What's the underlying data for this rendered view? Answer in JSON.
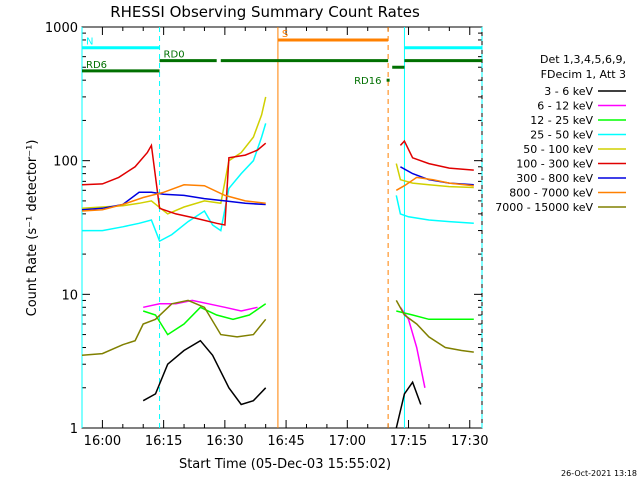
{
  "chart_data": {
    "type": "line",
    "title": "RHESSI Observing Summary Count Rates",
    "xlabel": "Start Time (05-Dec-03 15:55:02)",
    "ylabel": "Count Rate (s⁻¹ detector⁻¹)",
    "yscale": "log",
    "ylim": [
      1,
      1000
    ],
    "xlim": [
      "15:55",
      "17:33"
    ],
    "x_ticks": [
      "16:00",
      "16:15",
      "16:30",
      "16:45",
      "17:00",
      "17:15",
      "17:30"
    ],
    "y_ticks": [
      "1",
      "10",
      "100",
      "1000"
    ],
    "legend_header": [
      "Det 1,3,4,5,6,9,",
      "FDecim 1, Att 3"
    ],
    "footer": "26-Oct-2021 13:18",
    "series": [
      {
        "name": "3 - 6 keV",
        "color": "#000000",
        "points": [
          [
            "16:10",
            1.6
          ],
          [
            "16:13",
            1.8
          ],
          [
            "16:16",
            3.0
          ],
          [
            "16:20",
            3.8
          ],
          [
            "16:24",
            4.5
          ],
          [
            "16:27",
            3.5
          ],
          [
            "16:31",
            2.0
          ],
          [
            "16:34",
            1.5
          ],
          [
            "16:37",
            1.6
          ],
          [
            "16:40",
            2.0
          ],
          [
            "17:12",
            1.0
          ],
          [
            "17:14",
            1.8
          ],
          [
            "17:16",
            2.2
          ],
          [
            "17:18",
            1.5
          ]
        ]
      },
      {
        "name": "6 - 12 keV",
        "color": "#ff00ff",
        "points": [
          [
            "16:10",
            8.0
          ],
          [
            "16:14",
            8.5
          ],
          [
            "16:18",
            8.5
          ],
          [
            "16:22",
            9.0
          ],
          [
            "16:26",
            8.5
          ],
          [
            "16:30",
            8.0
          ],
          [
            "16:34",
            7.5
          ],
          [
            "16:38",
            8.0
          ],
          [
            "17:13",
            8.0
          ],
          [
            "17:15",
            6.5
          ],
          [
            "17:17",
            4.0
          ],
          [
            "17:19",
            2.0
          ]
        ]
      },
      {
        "name": "12 - 25 keV",
        "color": "#00ff00",
        "points": [
          [
            "16:10",
            7.5
          ],
          [
            "16:13",
            7.0
          ],
          [
            "16:16",
            5.0
          ],
          [
            "16:20",
            6.0
          ],
          [
            "16:24",
            8.0
          ],
          [
            "16:28",
            7.0
          ],
          [
            "16:32",
            6.5
          ],
          [
            "16:36",
            7.0
          ],
          [
            "16:40",
            8.5
          ],
          [
            "17:12",
            7.5
          ],
          [
            "17:16",
            7.0
          ],
          [
            "17:20",
            6.5
          ],
          [
            "17:25",
            6.5
          ],
          [
            "17:31",
            6.5
          ]
        ]
      },
      {
        "name": "25 - 50 keV",
        "color": "#00ffff",
        "points": [
          [
            "15:55",
            30.0
          ],
          [
            "16:00",
            30.0
          ],
          [
            "16:05",
            32.0
          ],
          [
            "16:09",
            34.0
          ],
          [
            "16:12",
            36.0
          ],
          [
            "16:14",
            25.0
          ],
          [
            "16:17",
            28.0
          ],
          [
            "16:21",
            35.0
          ],
          [
            "16:25",
            42.0
          ],
          [
            "16:27",
            33.0
          ],
          [
            "16:29",
            30.0
          ],
          [
            "16:31",
            62.0
          ],
          [
            "16:34",
            80.0
          ],
          [
            "16:37",
            100.0
          ],
          [
            "16:39",
            150.0
          ],
          [
            "16:40",
            190.0
          ],
          [
            "17:12",
            55.0
          ],
          [
            "17:13",
            40.0
          ],
          [
            "17:15",
            38.0
          ],
          [
            "17:20",
            36.0
          ],
          [
            "17:25",
            35.0
          ],
          [
            "17:31",
            34.0
          ]
        ]
      },
      {
        "name": "50 - 100 keV",
        "color": "#d0d000",
        "points": [
          [
            "15:55",
            44.0
          ],
          [
            "16:00",
            45.0
          ],
          [
            "16:05",
            46.0
          ],
          [
            "16:09",
            48.0
          ],
          [
            "16:12",
            50.0
          ],
          [
            "16:16",
            40.0
          ],
          [
            "16:20",
            45.0
          ],
          [
            "16:25",
            50.0
          ],
          [
            "16:29",
            48.0
          ],
          [
            "16:31",
            100.0
          ],
          [
            "16:34",
            115.0
          ],
          [
            "16:37",
            150.0
          ],
          [
            "16:39",
            220.0
          ],
          [
            "16:40",
            300.0
          ],
          [
            "17:12",
            95.0
          ],
          [
            "17:13",
            72.0
          ],
          [
            "17:16",
            68.0
          ],
          [
            "17:20",
            66.0
          ],
          [
            "17:25",
            64.0
          ],
          [
            "17:31",
            63.0
          ]
        ]
      },
      {
        "name": "100 - 300 keV",
        "color": "#e00000",
        "points": [
          [
            "15:55",
            66.0
          ],
          [
            "16:00",
            67.0
          ],
          [
            "16:04",
            75.0
          ],
          [
            "16:08",
            90.0
          ],
          [
            "16:11",
            115.0
          ],
          [
            "16:12",
            130.0
          ],
          [
            "16:14",
            44.0
          ],
          [
            "16:18",
            40.0
          ],
          [
            "16:23",
            37.0
          ],
          [
            "16:28",
            34.0
          ],
          [
            "16:30",
            33.0
          ],
          [
            "16:31",
            105.0
          ],
          [
            "16:35",
            110.0
          ],
          [
            "16:38",
            120.0
          ],
          [
            "16:40",
            135.0
          ],
          [
            "17:13",
            130.0
          ],
          [
            "17:14",
            140.0
          ],
          [
            "17:16",
            105.0
          ],
          [
            "17:20",
            95.0
          ],
          [
            "17:25",
            88.0
          ],
          [
            "17:31",
            85.0
          ]
        ]
      },
      {
        "name": "300 - 800 keV",
        "color": "#0000e0",
        "points": [
          [
            "15:55",
            43.0
          ],
          [
            "16:00",
            44.0
          ],
          [
            "16:05",
            47.0
          ],
          [
            "16:09",
            58.0
          ],
          [
            "16:12",
            58.0
          ],
          [
            "16:15",
            56.0
          ],
          [
            "16:20",
            55.0
          ],
          [
            "16:25",
            52.0
          ],
          [
            "16:30",
            50.0
          ],
          [
            "16:35",
            48.0
          ],
          [
            "16:40",
            47.0
          ],
          [
            "17:13",
            90.0
          ],
          [
            "17:16",
            80.0
          ],
          [
            "17:20",
            72.0
          ],
          [
            "17:25",
            68.0
          ],
          [
            "17:31",
            66.0
          ]
        ]
      },
      {
        "name": "800 - 7000 keV",
        "color": "#ff8000",
        "points": [
          [
            "15:55",
            42.0
          ],
          [
            "16:00",
            43.0
          ],
          [
            "16:05",
            47.0
          ],
          [
            "16:10",
            53.0
          ],
          [
            "16:15",
            58.0
          ],
          [
            "16:20",
            66.0
          ],
          [
            "16:25",
            65.0
          ],
          [
            "16:30",
            55.0
          ],
          [
            "16:35",
            50.0
          ],
          [
            "16:40",
            48.0
          ],
          [
            "17:12",
            60.0
          ],
          [
            "17:14",
            65.0
          ],
          [
            "17:17",
            75.0
          ],
          [
            "17:21",
            72.0
          ],
          [
            "17:25",
            68.0
          ],
          [
            "17:31",
            65.0
          ]
        ]
      },
      {
        "name": "7000 - 15000 keV",
        "color": "#808000",
        "points": [
          [
            "15:55",
            3.5
          ],
          [
            "16:00",
            3.6
          ],
          [
            "16:05",
            4.2
          ],
          [
            "16:08",
            4.5
          ],
          [
            "16:10",
            6.0
          ],
          [
            "16:13",
            6.5
          ],
          [
            "16:17",
            8.5
          ],
          [
            "16:21",
            9.0
          ],
          [
            "16:25",
            8.0
          ],
          [
            "16:29",
            5.0
          ],
          [
            "16:33",
            4.8
          ],
          [
            "16:37",
            5.0
          ],
          [
            "16:40",
            6.5
          ],
          [
            "17:12",
            9.0
          ],
          [
            "17:14",
            7.0
          ],
          [
            "17:17",
            6.0
          ],
          [
            "17:20",
            4.8
          ],
          [
            "17:24",
            4.0
          ],
          [
            "17:28",
            3.8
          ],
          [
            "17:31",
            3.7
          ]
        ]
      }
    ],
    "annotations": [
      {
        "text": "N",
        "color": "#00ffff",
        "start": "15:55",
        "end": "16:14",
        "level": 700,
        "style": "bar"
      },
      {
        "text": "",
        "color": "#00ffff",
        "start": "17:14",
        "end": "17:33",
        "level": 700,
        "style": "bar"
      },
      {
        "text": "RD0",
        "color": "#007000",
        "start": "16:14",
        "end": "16:28",
        "level": 560,
        "style": "bar"
      },
      {
        "text": "",
        "color": "#007000",
        "start": "16:29",
        "end": "17:10",
        "level": 560,
        "style": "bar"
      },
      {
        "text": "RD6",
        "color": "#007000",
        "start": "15:55",
        "end": "16:14",
        "level": 470,
        "style": "bar"
      },
      {
        "text": "",
        "color": "#007000",
        "start": "17:14",
        "end": "17:33",
        "level": 560,
        "style": "bar"
      },
      {
        "text": "S",
        "color": "#ff8000",
        "start": "16:43",
        "end": "17:10",
        "level": 800,
        "style": "bar"
      },
      {
        "text": "RD16",
        "color": "#007000",
        "start": "17:10",
        "end": "17:10",
        "level": 400,
        "style": "mark"
      },
      {
        "text": "",
        "color": "#007000",
        "start": "17:11",
        "end": "17:14",
        "level": 500,
        "style": "bar"
      }
    ],
    "vlines": [
      {
        "t": "15:55",
        "color": "#00ffff",
        "dash": "none"
      },
      {
        "t": "16:14",
        "color": "#00ffff",
        "dash": "dashed"
      },
      {
        "t": "16:43",
        "color": "#ff8000",
        "dash": "none"
      },
      {
        "t": "17:10",
        "color": "#ff8000",
        "dash": "dashed"
      },
      {
        "t": "17:14",
        "color": "#00ffff",
        "dash": "none"
      },
      {
        "t": "17:33",
        "color": "#00ffff",
        "dash": "dashed"
      }
    ]
  }
}
